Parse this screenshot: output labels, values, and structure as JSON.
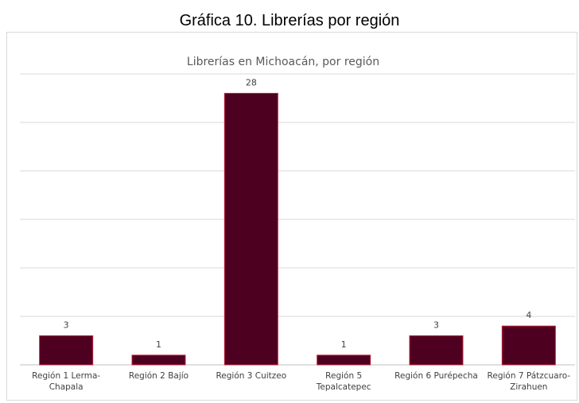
{
  "page": {
    "title": "Gráfica 10. Librerías por región"
  },
  "chart_data": {
    "type": "bar",
    "title": "Librerías en Michoacán, por región",
    "categories": [
      [
        "Región 1 Lerma-",
        "Chapala"
      ],
      [
        "Región 2 Bajío"
      ],
      [
        "Región 3 Cuitzeo"
      ],
      [
        "Región 5",
        "Tepalcatepec"
      ],
      [
        "Región 6 Purépecha"
      ],
      [
        "Región 7 Pátzcuaro-",
        "Zirahuen"
      ]
    ],
    "values": [
      3,
      1,
      28,
      1,
      3,
      4
    ],
    "ylim": [
      0,
      30
    ],
    "grid": true,
    "y_axis_labels_shown": false,
    "legend": "none",
    "colors": {
      "bar_fill": "#4d0020",
      "bar_stroke": "#c0203c",
      "grid": "#d9d9d9",
      "axis": "#bfbfbf"
    }
  }
}
